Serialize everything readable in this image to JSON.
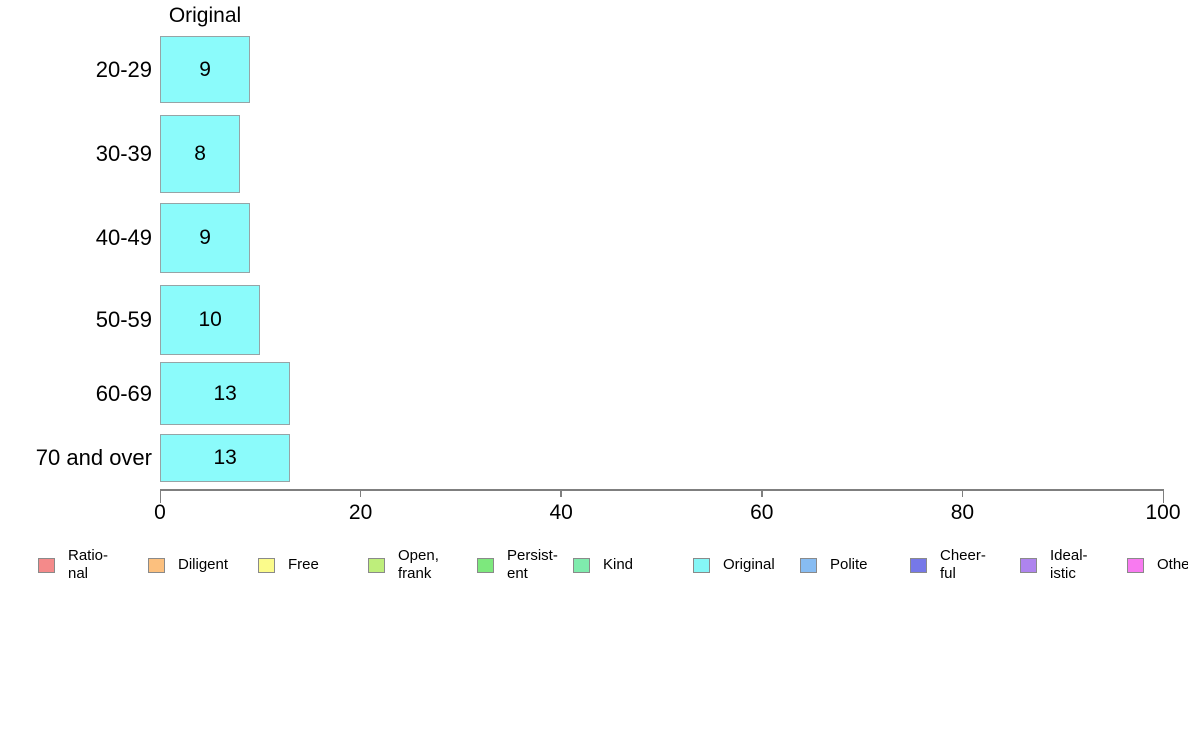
{
  "chart_data": {
    "type": "bar",
    "orientation": "horizontal",
    "title": "Original",
    "categories": [
      "20-29",
      "30-39",
      "40-49",
      "50-59",
      "60-69",
      "70 and over"
    ],
    "values": [
      9,
      8,
      9,
      10,
      13,
      13
    ],
    "xlim": [
      0,
      100
    ],
    "x_ticks": [
      "0",
      "20",
      "40",
      "60",
      "80",
      "100"
    ],
    "grid": false,
    "bar_color": "#8BFBFB",
    "bar_border_color": "#96A4A6",
    "axis_color": "#7f7f7f",
    "legend_position": "bottom",
    "legend": [
      {
        "label": "Rational",
        "line1": "Ratio-",
        "line2": "nal",
        "color": "#F48A8A"
      },
      {
        "label": "Diligent",
        "line1": "Diligent",
        "color": "#FCC07E"
      },
      {
        "label": "Free",
        "line1": "Free",
        "color": "#FBFB8B"
      },
      {
        "label": "Open, frank",
        "line1": "Open,",
        "line2": "frank",
        "color": "#BEEE7B"
      },
      {
        "label": "Persistent",
        "line1": "Persist-",
        "line2": "ent",
        "color": "#7DE87D"
      },
      {
        "label": "Kind",
        "line1": "Kind",
        "color": "#7FEBAD"
      },
      {
        "label": "Original",
        "line1": "Original",
        "color": "#85F6F6"
      },
      {
        "label": "Polite",
        "line1": "Polite",
        "color": "#87BCF2"
      },
      {
        "label": "Cheerful",
        "line1": "Cheer-",
        "line2": "ful",
        "color": "#7678E8"
      },
      {
        "label": "Idealistic",
        "line1": "Ideal-",
        "line2": "istic",
        "color": "#AE84EE"
      },
      {
        "label": "Other",
        "line1": "Other",
        "color": "#F87AF0"
      }
    ]
  }
}
